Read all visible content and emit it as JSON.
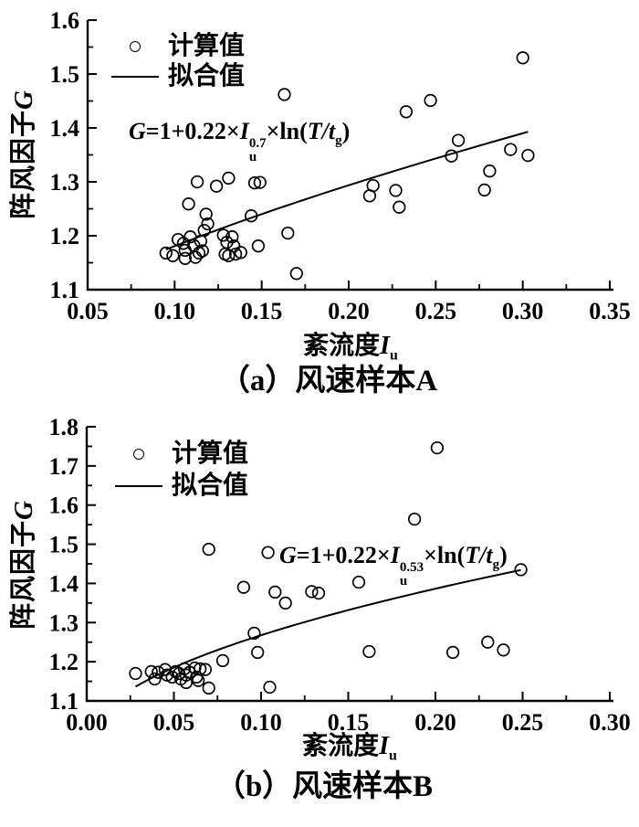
{
  "page": {
    "background": "#ffffff",
    "ink": "#000000"
  },
  "chart_data": [
    {
      "id": "a",
      "type": "scatter",
      "caption": "（a）风速样本A",
      "xlabel_text": "紊流度",
      "xlabel_var": "I",
      "xlabel_sub": "u",
      "ylabel_text": "阵风因子",
      "ylabel_var": "G",
      "legend": [
        {
          "marker": "circle",
          "label": "计算值"
        },
        {
          "marker": "line",
          "label": "拟合值"
        }
      ],
      "equation": {
        "lhs": "G",
        "rel": "=1+0.22×",
        "base": "I",
        "sup": "0.7",
        "sub": "u",
        "mult": "×ln(",
        "arg": "T/t",
        "argsub": "g",
        "close": ")"
      },
      "xlim": [
        0.05,
        0.35
      ],
      "ylim": [
        1.1,
        1.6
      ],
      "xticks": [
        0.05,
        0.1,
        0.15,
        0.2,
        0.25,
        0.3,
        0.35
      ],
      "xtick_labels": [
        "0.05",
        "0.10",
        "0.15",
        "0.20",
        "0.25",
        "0.30",
        "0.35"
      ],
      "x_minor_step": 0.025,
      "yticks": [
        1.1,
        1.2,
        1.3,
        1.4,
        1.5,
        1.6
      ],
      "ytick_labels": [
        "1.1",
        "1.2",
        "1.3",
        "1.4",
        "1.5",
        "1.6"
      ],
      "y_minor_step": 0.05,
      "grid": false,
      "legend_position": "top-left",
      "points": [
        [
          0.095,
          1.168
        ],
        [
          0.099,
          1.163
        ],
        [
          0.102,
          1.193
        ],
        [
          0.105,
          1.186
        ],
        [
          0.106,
          1.173
        ],
        [
          0.106,
          1.158
        ],
        [
          0.108,
          1.259
        ],
        [
          0.109,
          1.198
        ],
        [
          0.111,
          1.182
        ],
        [
          0.112,
          1.16
        ],
        [
          0.113,
          1.3
        ],
        [
          0.114,
          1.168
        ],
        [
          0.115,
          1.19
        ],
        [
          0.116,
          1.172
        ],
        [
          0.117,
          1.21
        ],
        [
          0.118,
          1.24
        ],
        [
          0.119,
          1.222
        ],
        [
          0.124,
          1.292
        ],
        [
          0.128,
          1.201
        ],
        [
          0.129,
          1.166
        ],
        [
          0.13,
          1.188
        ],
        [
          0.131,
          1.307
        ],
        [
          0.131,
          1.163
        ],
        [
          0.133,
          1.198
        ],
        [
          0.134,
          1.181
        ],
        [
          0.135,
          1.166
        ],
        [
          0.138,
          1.169
        ],
        [
          0.144,
          1.237
        ],
        [
          0.146,
          1.298
        ],
        [
          0.149,
          1.299
        ],
        [
          0.148,
          1.181
        ],
        [
          0.163,
          1.462
        ],
        [
          0.165,
          1.205
        ],
        [
          0.17,
          1.13
        ],
        [
          0.212,
          1.274
        ],
        [
          0.214,
          1.293
        ],
        [
          0.227,
          1.284
        ],
        [
          0.229,
          1.253
        ],
        [
          0.233,
          1.43
        ],
        [
          0.247,
          1.451
        ],
        [
          0.259,
          1.348
        ],
        [
          0.263,
          1.377
        ],
        [
          0.278,
          1.285
        ],
        [
          0.281,
          1.32
        ],
        [
          0.293,
          1.36
        ],
        [
          0.3,
          1.53
        ],
        [
          0.303,
          1.349
        ]
      ],
      "fit": {
        "coef": 0.906,
        "exponent": 0.7,
        "x_start": 0.095,
        "x_end": 0.303
      }
    },
    {
      "id": "b",
      "type": "scatter",
      "caption": "（b）风速样本B",
      "xlabel_text": "紊流度",
      "xlabel_var": "I",
      "xlabel_sub": "u",
      "ylabel_text": "阵风因子",
      "ylabel_var": "G",
      "legend": [
        {
          "marker": "circle",
          "label": "计算值"
        },
        {
          "marker": "line",
          "label": "拟合值"
        }
      ],
      "equation": {
        "lhs": "G",
        "rel": "=1+0.22×",
        "base": "I",
        "sup": "0.53",
        "sub": "u",
        "mult": "×ln(",
        "arg": "T/t",
        "argsub": "g",
        "close": ")"
      },
      "xlim": [
        0.0,
        0.3
      ],
      "ylim": [
        1.1,
        1.8
      ],
      "xticks": [
        0.0,
        0.05,
        0.1,
        0.15,
        0.2,
        0.25,
        0.3
      ],
      "xtick_labels": [
        "0.00",
        "0.05",
        "0.10",
        "0.15",
        "0.20",
        "0.25",
        "0.30"
      ],
      "x_minor_step": 0.025,
      "yticks": [
        1.1,
        1.2,
        1.3,
        1.4,
        1.5,
        1.6,
        1.7,
        1.8
      ],
      "ytick_labels": [
        "1.1",
        "1.2",
        "1.3",
        "1.4",
        "1.5",
        "1.6",
        "1.7",
        "1.8"
      ],
      "y_minor_step": 0.05,
      "grid": false,
      "legend_position": "top-left",
      "points": [
        [
          0.028,
          1.17
        ],
        [
          0.037,
          1.175
        ],
        [
          0.039,
          1.156
        ],
        [
          0.041,
          1.173
        ],
        [
          0.045,
          1.18
        ],
        [
          0.046,
          1.166
        ],
        [
          0.049,
          1.161
        ],
        [
          0.051,
          1.175
        ],
        [
          0.053,
          1.17
        ],
        [
          0.054,
          1.156
        ],
        [
          0.056,
          1.182
        ],
        [
          0.057,
          1.166
        ],
        [
          0.057,
          1.147
        ],
        [
          0.059,
          1.173
        ],
        [
          0.062,
          1.184
        ],
        [
          0.063,
          1.161
        ],
        [
          0.064,
          1.152
        ],
        [
          0.065,
          1.182
        ],
        [
          0.068,
          1.18
        ],
        [
          0.07,
          1.133
        ],
        [
          0.07,
          1.487
        ],
        [
          0.078,
          1.203
        ],
        [
          0.09,
          1.39
        ],
        [
          0.096,
          1.273
        ],
        [
          0.098,
          1.224
        ],
        [
          0.104,
          1.479
        ],
        [
          0.105,
          1.135
        ],
        [
          0.108,
          1.378
        ],
        [
          0.114,
          1.35
        ],
        [
          0.129,
          1.379
        ],
        [
          0.133,
          1.375
        ],
        [
          0.156,
          1.403
        ],
        [
          0.162,
          1.226
        ],
        [
          0.188,
          1.564
        ],
        [
          0.201,
          1.746
        ],
        [
          0.21,
          1.224
        ],
        [
          0.23,
          1.25
        ],
        [
          0.239,
          1.23
        ],
        [
          0.249,
          1.435
        ]
      ],
      "fit": {
        "coef": 0.907,
        "exponent": 0.53,
        "x_start": 0.028,
        "x_end": 0.249
      }
    }
  ]
}
